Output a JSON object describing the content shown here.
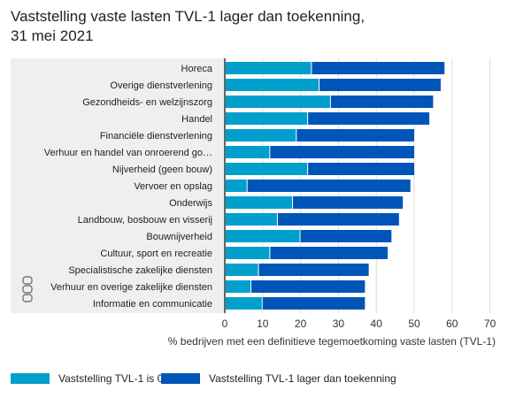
{
  "chart_data": {
    "type": "bar",
    "orientation": "horizontal",
    "stacked": true,
    "title": "Vaststelling vaste lasten TVL-1 lager dan toekenning, 31 mei 2021",
    "xlabel": "% bedrijven met een definitieve tegemoetkoming vaste lasten (TVL-1)",
    "ylabel": "",
    "xlim": [
      0,
      70
    ],
    "xticks": [
      "0",
      "10",
      "20",
      "30",
      "40",
      "50",
      "60",
      "70"
    ],
    "grid": true,
    "legend_position": "bottom",
    "categories": [
      "Horeca",
      "Overige dienstverlening",
      "Gezondheids- en welzijnszorg",
      "Handel",
      "Financiële dienstverlening",
      "Verhuur en handel van onroerend go…",
      "Nijverheid (geen bouw)",
      "Vervoer en opslag",
      "Onderwijs",
      "Landbouw, bosbouw en visserij",
      "Bouwnijverheid",
      "Cultuur, sport en recreatie",
      "Specialistische zakelijke diensten",
      "Verhuur en overige zakelijke diensten",
      "Informatie en communicatie"
    ],
    "series": [
      {
        "name": "Vaststelling TVL-1 is 0",
        "color": "#009fcc",
        "values": [
          23,
          25,
          28,
          22,
          19,
          12,
          22,
          6,
          18,
          14,
          20,
          12,
          9,
          7,
          10
        ]
      },
      {
        "name": "Vaststelling TVL-1 lager dan toekenning",
        "color": "#0055b8",
        "values": [
          35,
          32,
          27,
          32,
          31,
          38,
          28,
          43,
          29,
          32,
          24,
          31,
          29,
          30,
          27
        ]
      }
    ]
  }
}
